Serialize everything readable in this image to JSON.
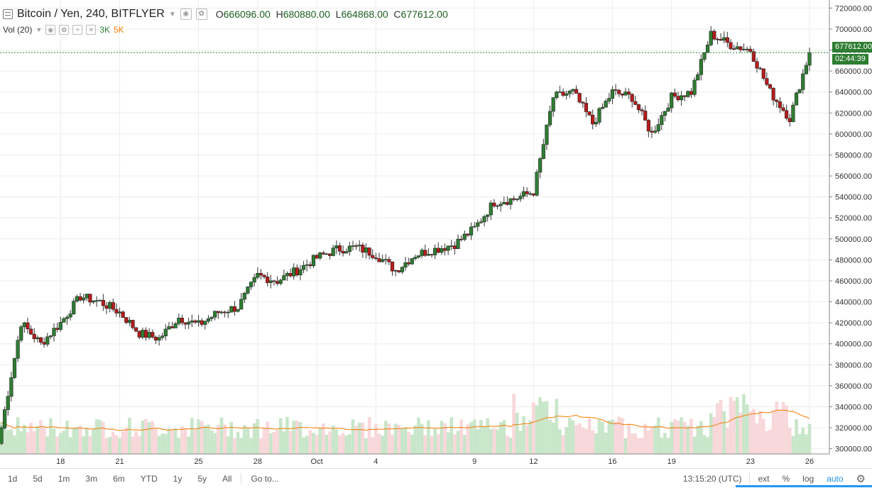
{
  "header": {
    "symbol": "Bitcoin / Yen, 240, BITFLYER",
    "ohlc": {
      "O": "666096.00",
      "H": "680880.00",
      "L": "664868.00",
      "C": "677612.00"
    }
  },
  "volume_legend": {
    "label": "Vol (20)",
    "v1": "3K",
    "v2": "5K"
  },
  "price_axis": {
    "ticks": [
      "720000.00",
      "700000.00",
      "680000.00",
      "660000.00",
      "640000.00",
      "620000.00",
      "600000.00",
      "580000.00",
      "560000.00",
      "540000.00",
      "520000.00",
      "500000.00",
      "480000.00",
      "460000.00",
      "440000.00",
      "420000.00",
      "400000.00",
      "380000.00",
      "360000.00",
      "340000.00",
      "320000.00",
      "300000.00"
    ],
    "last_price_label": "677612.00",
    "countdown_label": "02:44:39"
  },
  "time_axis": {
    "labels": [
      "18",
      "21",
      "25",
      "28",
      "Oct",
      "4",
      "9",
      "12",
      "16",
      "19",
      "23",
      "26"
    ]
  },
  "colors": {
    "up": "#2e7d32",
    "down": "#b71c1c",
    "up_vol": "#c8e6c9",
    "down_vol": "#f8d7da",
    "ma": "#f57c00",
    "grid": "#ececec"
  },
  "bottom_bar": {
    "timeframes": [
      "1d",
      "5d",
      "1m",
      "3m",
      "6m",
      "YTD",
      "1y",
      "5y",
      "All"
    ],
    "goto": "Go to...",
    "clock": "13:15:20 (UTC)",
    "ext": "ext",
    "percent": "%",
    "log": "log",
    "auto": "auto",
    "settings_icon": "gear-icon"
  },
  "chart_data": {
    "type": "candlestick",
    "pair": "BTC/JPY",
    "interval": "240",
    "ylim": [
      295000,
      725000
    ],
    "last_price": 677612,
    "anchors": [
      {
        "date": "Sep 15",
        "close": 320000
      },
      {
        "date": "Sep 16",
        "close": 420000
      },
      {
        "date": "Sep 17",
        "close": 400000
      },
      {
        "date": "Sep 18",
        "close": 420000
      },
      {
        "date": "Sep 19",
        "close": 445000
      },
      {
        "date": "Sep 20",
        "close": 440000
      },
      {
        "date": "Sep 21",
        "close": 430000
      },
      {
        "date": "Sep 22",
        "close": 410000
      },
      {
        "date": "Sep 23",
        "close": 405000
      },
      {
        "date": "Sep 24",
        "close": 425000
      },
      {
        "date": "Sep 25",
        "close": 418000
      },
      {
        "date": "Sep 26",
        "close": 430000
      },
      {
        "date": "Sep 27",
        "close": 435000
      },
      {
        "date": "Sep 28",
        "close": 465000
      },
      {
        "date": "Sep 29",
        "close": 460000
      },
      {
        "date": "Sep 30",
        "close": 470000
      },
      {
        "date": "Oct 1",
        "close": 482000
      },
      {
        "date": "Oct 2",
        "close": 490000
      },
      {
        "date": "Oct 3",
        "close": 492000
      },
      {
        "date": "Oct 4",
        "close": 485000
      },
      {
        "date": "Oct 5",
        "close": 470000
      },
      {
        "date": "Oct 6",
        "close": 485000
      },
      {
        "date": "Oct 7",
        "close": 490000
      },
      {
        "date": "Oct 8",
        "close": 495000
      },
      {
        "date": "Oct 9",
        "close": 510000
      },
      {
        "date": "Oct 10",
        "close": 535000
      },
      {
        "date": "Oct 11",
        "close": 538000
      },
      {
        "date": "Oct 12",
        "close": 545000
      },
      {
        "date": "Oct 13",
        "close": 635000
      },
      {
        "date": "Oct 14",
        "close": 640000
      },
      {
        "date": "Oct 15",
        "close": 610000
      },
      {
        "date": "Oct 16",
        "close": 640000
      },
      {
        "date": "Oct 17",
        "close": 635000
      },
      {
        "date": "Oct 18",
        "close": 600000
      },
      {
        "date": "Oct 19",
        "close": 635000
      },
      {
        "date": "Oct 20",
        "close": 640000
      },
      {
        "date": "Oct 21",
        "close": 695000
      },
      {
        "date": "Oct 22",
        "close": 685000
      },
      {
        "date": "Oct 23",
        "close": 680000
      },
      {
        "date": "Oct 24",
        "close": 640000
      },
      {
        "date": "Oct 25",
        "close": 615000
      },
      {
        "date": "Oct 26",
        "close": 678000
      }
    ]
  }
}
